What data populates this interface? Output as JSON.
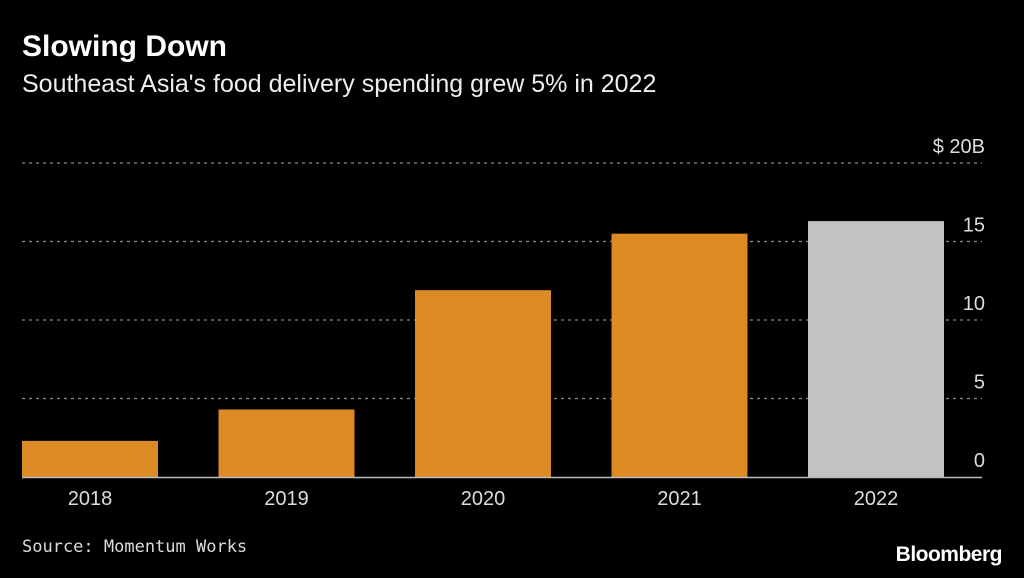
{
  "header": {
    "title": "Slowing Down",
    "subtitle": "Southeast Asia's food delivery spending grew 5% in 2022"
  },
  "footer": {
    "source": "Source: Momentum Works",
    "logo": "Bloomberg"
  },
  "colors": {
    "bar": "#DB8A24",
    "highlight": "#C2C2C2",
    "grid": "#8A8A8A"
  },
  "chart_data": {
    "type": "bar",
    "title": "Slowing Down",
    "subtitle": "Southeast Asia's food delivery spending grew 5% in 2022",
    "categories": [
      "2018",
      "2019",
      "2020",
      "2021",
      "2022"
    ],
    "values": [
      2.3,
      4.3,
      11.9,
      15.5,
      16.3
    ],
    "highlighted": [
      "2022"
    ],
    "unit": "$ billions",
    "ylim": [
      0,
      20
    ],
    "yticks": [
      0,
      5,
      10,
      15,
      20
    ],
    "ytick_labels": [
      "0",
      "5",
      "10",
      "15",
      "$ 20B"
    ],
    "yaxis_position": "right",
    "grid": true,
    "xlabel": "",
    "ylabel": ""
  }
}
